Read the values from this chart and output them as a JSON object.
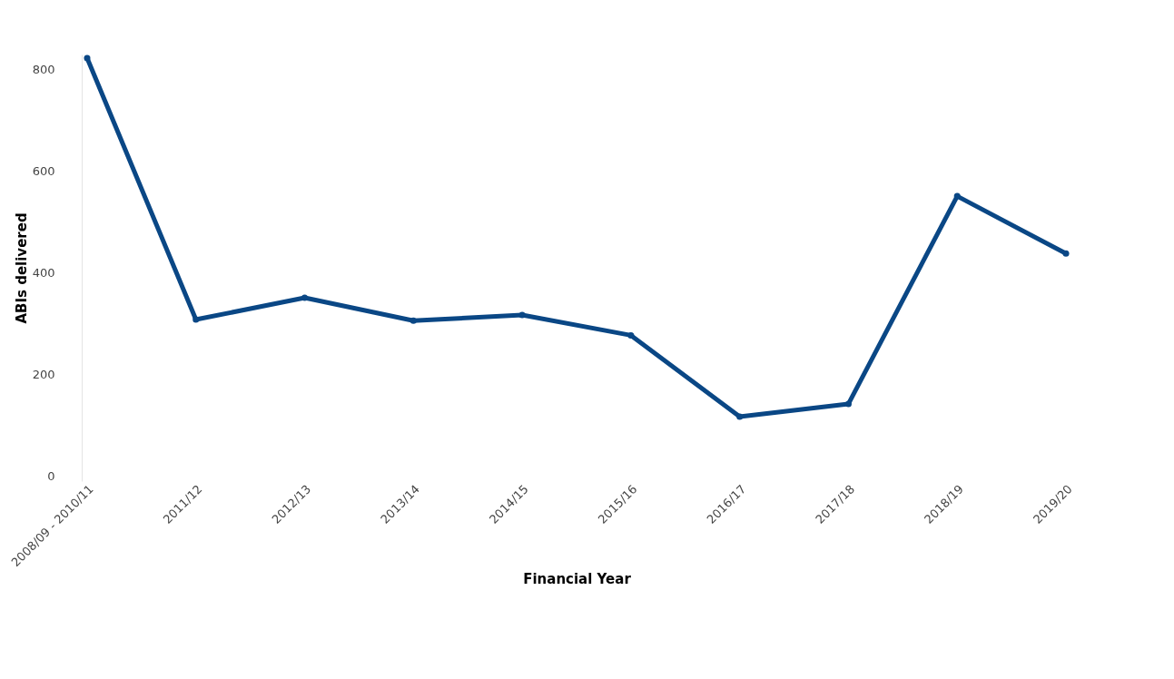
{
  "chart_data": {
    "type": "line",
    "xlabel": "Financial Year",
    "ylabel": "ABIs delivered",
    "categories": [
      "2008/09 - 2010/11",
      "2011/12",
      "2012/13",
      "2013/14",
      "2014/15",
      "2015/16",
      "2016/17",
      "2017/18",
      "2018/19",
      "2019/20"
    ],
    "series": [
      {
        "color": "#0a4785",
        "values": [
          823,
          308,
          351,
          306,
          317,
          277,
          117,
          142,
          551,
          438
        ]
      }
    ],
    "ylim": [
      -10,
      830
    ],
    "yticks": [
      0,
      200,
      400,
      600,
      800
    ],
    "grid": false,
    "marker": "circle",
    "line_style": "solid"
  }
}
